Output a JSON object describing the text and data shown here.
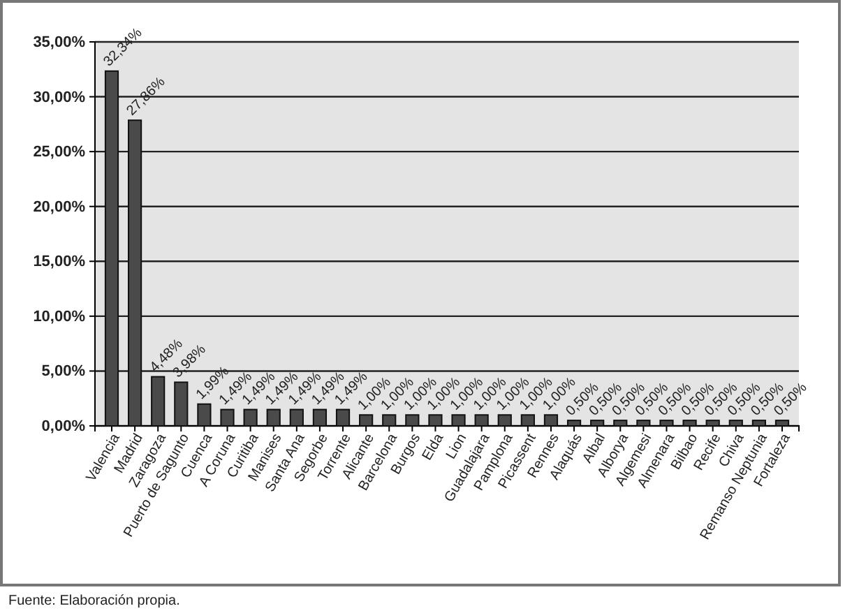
{
  "chart_data": {
    "type": "bar",
    "categories": [
      "Valencia",
      "Madrid",
      "Zaragoza",
      "Puerto de Sagunto",
      "Cuenca",
      "A Coruna",
      "Curitiba",
      "Manises",
      "Santa Ana",
      "Segorbe",
      "Torrente",
      "Alicante",
      "Barcelona",
      "Burgos",
      "Elda",
      "Lion",
      "Guadalajara",
      "Pamplona",
      "Picassent",
      "Rennes",
      "Alaquás",
      "Albal",
      "Alborya",
      "Algemesi",
      "Almenara",
      "Bilbao",
      "Recife",
      "Chiva",
      "Remanso Neptunia",
      "Fortaleza"
    ],
    "values": [
      32.34,
      27.86,
      4.48,
      3.98,
      1.99,
      1.49,
      1.49,
      1.49,
      1.49,
      1.49,
      1.49,
      1.0,
      1.0,
      1.0,
      1.0,
      1.0,
      1.0,
      1.0,
      1.0,
      1.0,
      0.5,
      0.5,
      0.5,
      0.5,
      0.5,
      0.5,
      0.5,
      0.5,
      0.5,
      0.5
    ],
    "value_labels": [
      "32,34%",
      "27,86%",
      "4,48%",
      "3,98%",
      "1,99%",
      "1,49%",
      "1,49%",
      "1,49%",
      "1,49%",
      "1,49%",
      "1,49%",
      "1,00%",
      "1,00%",
      "1,00%",
      "1,00%",
      "1,00%",
      "1,00%",
      "1,00%",
      "1,00%",
      "1,00%",
      "0,50%",
      "0,50%",
      "0,50%",
      "0,50%",
      "0,50%",
      "0,50%",
      "0,50%",
      "0,50%",
      "0,50%",
      "0,50%"
    ],
    "color": "#4a4a4a",
    "ylim": [
      0,
      35
    ],
    "yticks": [
      {
        "value": 0,
        "label": "0,00%"
      },
      {
        "value": 5,
        "label": "5,00%"
      },
      {
        "value": 10,
        "label": "10,00%"
      },
      {
        "value": 15,
        "label": "15,00%"
      },
      {
        "value": 20,
        "label": "20,00%"
      },
      {
        "value": 25,
        "label": "25,00%"
      },
      {
        "value": 30,
        "label": "30,00%"
      },
      {
        "value": 35,
        "label": "35,00%"
      }
    ],
    "grid": "y",
    "annotations": [
      "Fuente: Elaboración propia."
    ]
  }
}
